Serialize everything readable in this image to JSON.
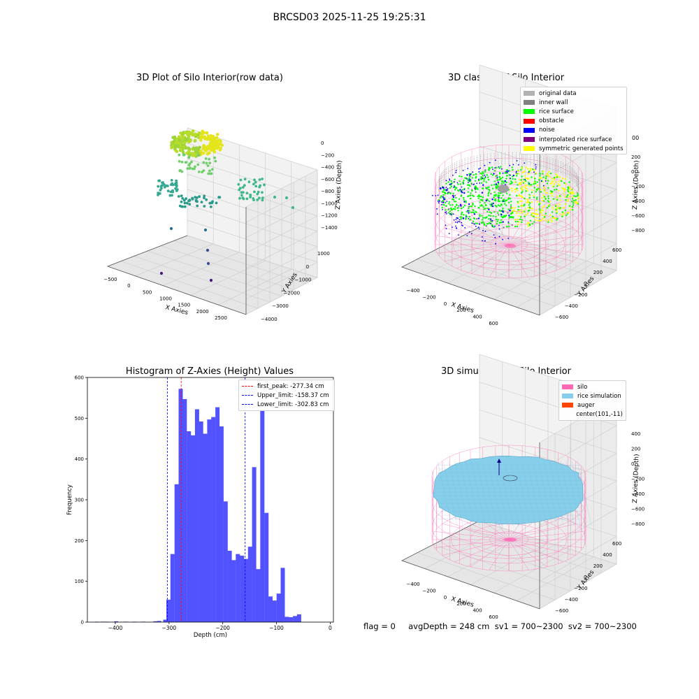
{
  "suptitle": "BRCSD03 2025-11-25 19:25:31",
  "footer_text": "flag = 0     avgDepth = 248 cm  sv1 = 700~2300  sv2 = 700~2300",
  "chart_data": [
    {
      "type": "scatter",
      "title": "3D Plot of Silo Interior(row data)",
      "xlabel": "X Axies",
      "ylabel": "Y Axies",
      "zlabel": "Z Axies (Depth)",
      "x_ticks": [
        "−500",
        "0",
        "500",
        "1000",
        "1500",
        "2000",
        "2500"
      ],
      "y_ticks": [
        "1000",
        "0",
        "−1000",
        "−2000",
        "−3000",
        "−4000"
      ],
      "z_ticks": [
        "0",
        "−200",
        "−400",
        "−600",
        "−800",
        "−1000",
        "−1200",
        "−1400"
      ],
      "grid": true
    },
    {
      "type": "scatter",
      "title": "3D classify of Silo Interior",
      "xlabel": "X Axies",
      "ylabel": "Y Axies",
      "zlabel": "Z Axies (Depth)",
      "x_ticks": [
        "−400",
        "−200",
        "0",
        "200",
        "400",
        "600"
      ],
      "y_ticks": [
        "600",
        "400",
        "200",
        "0",
        "−200",
        "−400",
        "−600"
      ],
      "z_ticks": [
        "200",
        "0",
        "−200",
        "−400",
        "−600",
        "−800"
      ],
      "z_top_tick": "00",
      "legend": [
        {
          "name": "original data",
          "color": "#b2b2b2"
        },
        {
          "name": "inner wall",
          "color": "#808080"
        },
        {
          "name": "rice surface",
          "color": "#00ff00"
        },
        {
          "name": "obstacle",
          "color": "#ff0000"
        },
        {
          "name": "noise",
          "color": "#0000ff"
        },
        {
          "name": "interpolated rice surface",
          "color": "#800080"
        },
        {
          "name": "symmetric generated points",
          "color": "#ffff00"
        }
      ],
      "legend_position": "top-right",
      "grid": true
    },
    {
      "type": "bar",
      "title": "Histogram of Z-Axies (Height) Values",
      "xlabel": "Depth (cm)",
      "ylabel": "Frequency",
      "xlim": [
        -452,
        6
      ],
      "ylim": [
        0,
        600
      ],
      "x_ticks": [
        -400,
        -300,
        -200,
        -100,
        0
      ],
      "x_tick_labels": [
        "−400",
        "−300",
        "−200",
        "−100",
        "0"
      ],
      "y_ticks": [
        0,
        100,
        200,
        300,
        400,
        500,
        600
      ],
      "bin_width": 7.6,
      "bins_start": -305,
      "values": [
        55,
        167,
        338,
        572,
        547,
        468,
        458,
        522,
        492,
        462,
        497,
        503,
        527,
        480,
        296,
        175,
        152,
        167,
        163,
        155,
        185,
        380,
        130,
        518,
        268,
        63,
        53,
        70,
        133,
        13,
        12,
        15,
        19
      ],
      "left_tail": [
        {
          "x": -438,
          "value": 1
        },
        {
          "x": -427,
          "value": 1
        },
        {
          "x": -419,
          "value": 1
        },
        {
          "x": -402,
          "value": 2
        },
        {
          "x": -385,
          "value": 1
        },
        {
          "x": -368,
          "value": 1
        },
        {
          "x": -352,
          "value": 1
        },
        {
          "x": -329,
          "value": 2
        },
        {
          "x": -322,
          "value": 3
        },
        {
          "x": -311,
          "value": 6
        }
      ],
      "lines": [
        {
          "name": "first_peak: -277.34 cm",
          "x": -277.34,
          "color": "#ff0000"
        },
        {
          "name": "Upper_limit: -158.37 cm",
          "x": -158.37,
          "color": "#0000ff"
        },
        {
          "name": "Lower_limit: -302.83 cm",
          "x": -302.83,
          "color": "#0000ff"
        }
      ],
      "bar_color": "#5252ff",
      "legend_position": "top-right"
    },
    {
      "type": "scatter",
      "title": "3D simulation of Silo Interior",
      "xlabel": "X Axies",
      "ylabel": "Y Axies",
      "zlabel": "Z Axies (Depth)",
      "x_ticks": [
        "−400",
        "−200",
        "0",
        "200",
        "400",
        "600"
      ],
      "y_ticks": [
        "600",
        "400",
        "200",
        "0",
        "−200",
        "−400",
        "−600"
      ],
      "z_ticks": [
        "400",
        "200",
        "0",
        "−200",
        "−400",
        "−600",
        "−800"
      ],
      "legend": [
        {
          "name": "silo",
          "color": "#ff69b4"
        },
        {
          "name": "rice simulation",
          "color": "#87ceeb"
        },
        {
          "name": "auger",
          "color": "#ff4500"
        },
        {
          "name": "center(101,-11)",
          "color": ""
        }
      ],
      "legend_position": "top-right",
      "grid": true
    }
  ]
}
